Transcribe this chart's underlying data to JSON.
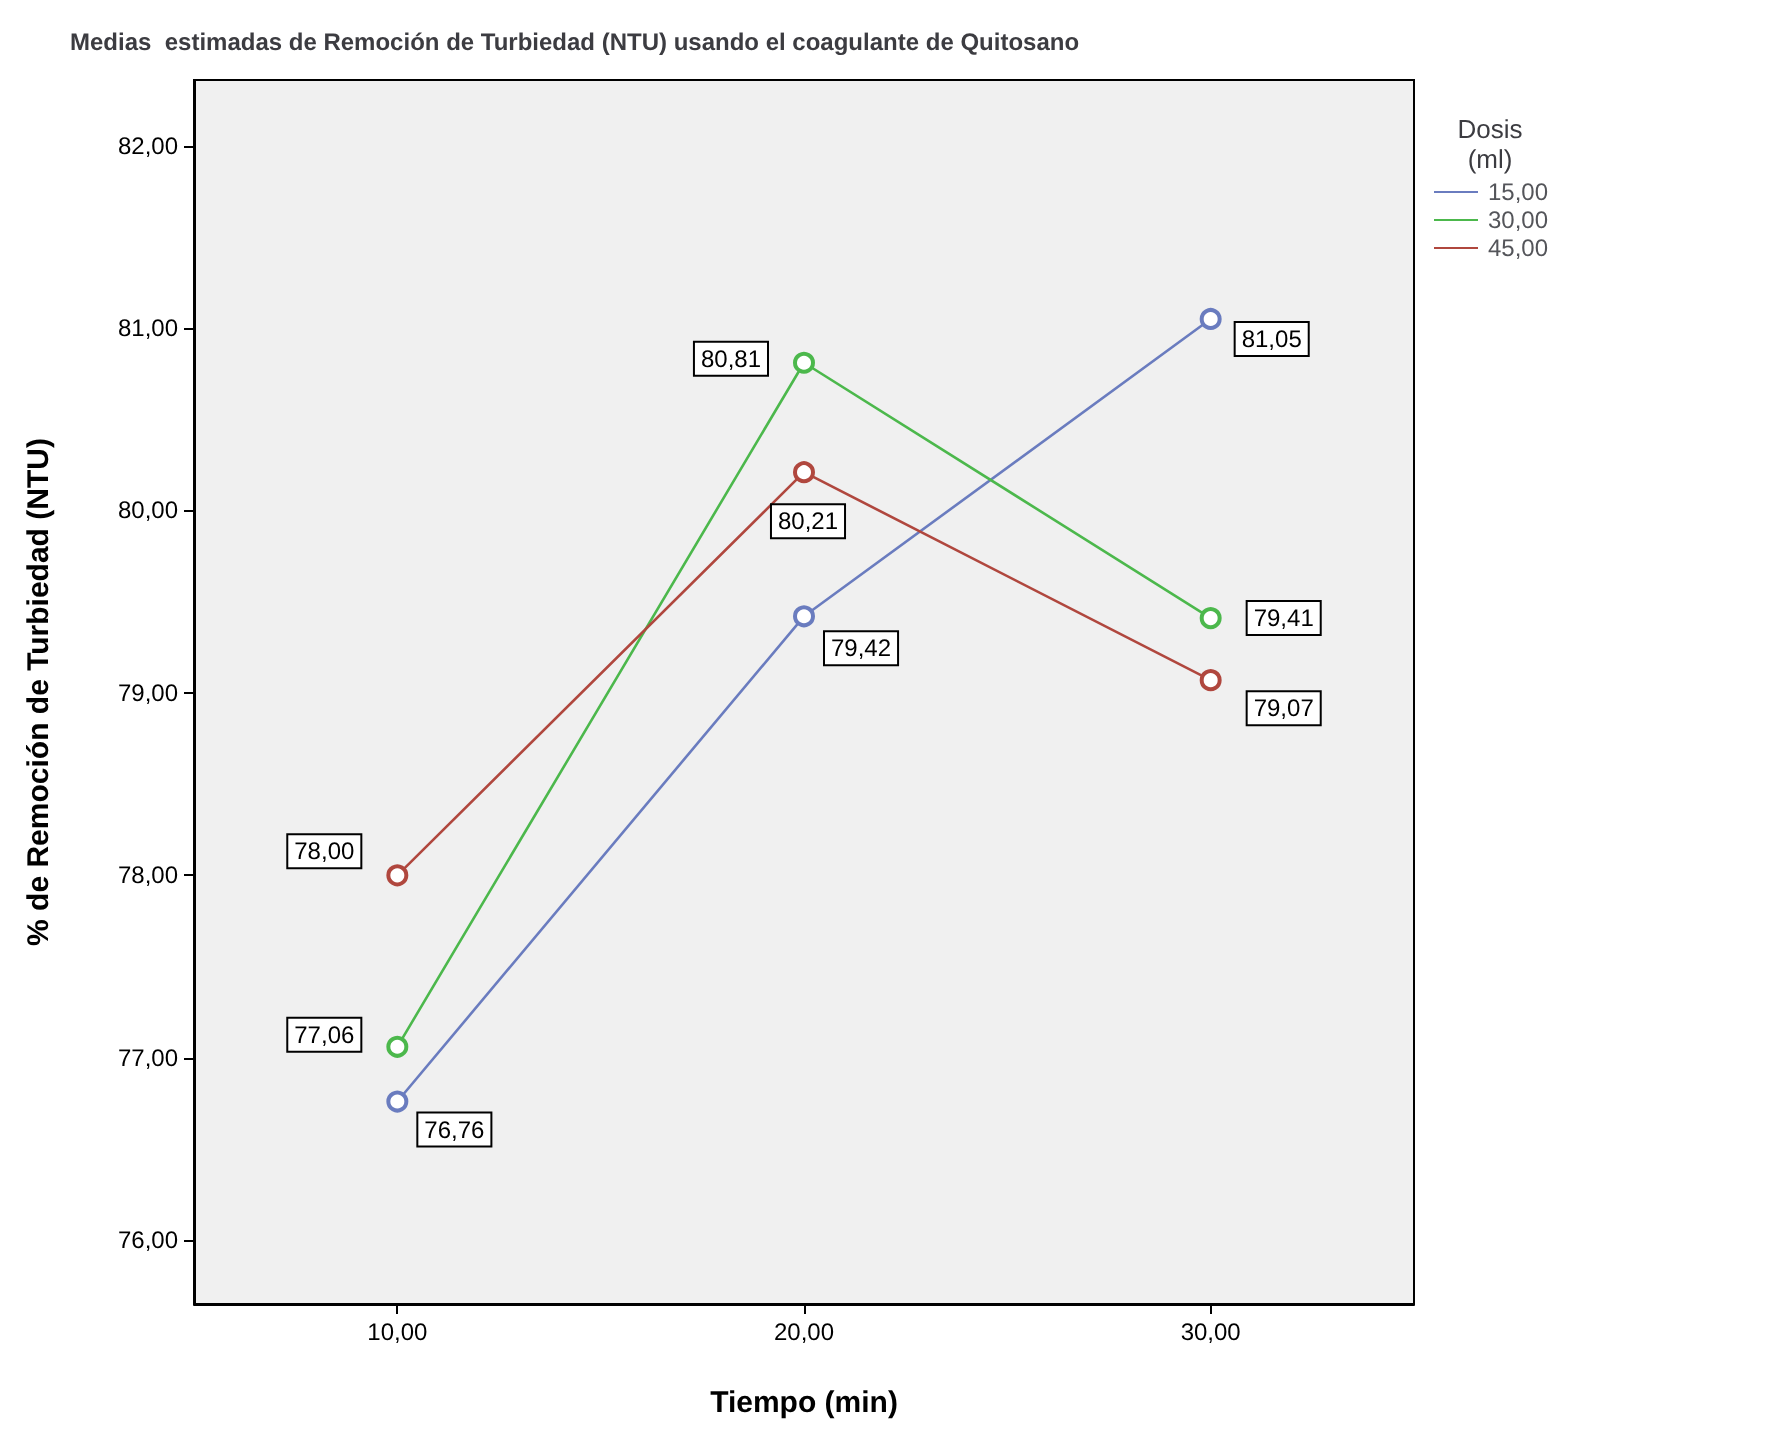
{
  "chart_data": {
    "type": "line",
    "title": "Medias  estimadas de Remoción de Turbiedad (NTU) usando el coagulante de Quitosano",
    "xlabel": "Tiempo (min)",
    "ylabel": "% de Remoción de Turbiedad (NTU)",
    "legend_title": "Dosis (ml)",
    "categories": [
      "10,00",
      "20,00",
      "30,00"
    ],
    "series": [
      {
        "name": "15,00",
        "color": "#6a7cbf",
        "values": [
          76.76,
          79.42,
          81.05
        ],
        "value_labels": [
          "76,76",
          "79,42",
          "81,05"
        ]
      },
      {
        "name": "30,00",
        "color": "#4cb84c",
        "values": [
          77.06,
          80.81,
          79.41
        ],
        "value_labels": [
          "77,06",
          "80,81",
          "79,41"
        ]
      },
      {
        "name": "45,00",
        "color": "#b0473e",
        "values": [
          78.0,
          80.21,
          79.07
        ],
        "value_labels": [
          "78,00",
          "80,21",
          "79,07"
        ]
      }
    ],
    "ylim": [
      75.65,
      82.36
    ],
    "yticks": [
      {
        "value": 76,
        "label": "76,00"
      },
      {
        "value": 77,
        "label": "77,00"
      },
      {
        "value": 78,
        "label": "78,00"
      },
      {
        "value": 79,
        "label": "79,00"
      },
      {
        "value": 80,
        "label": "80,00"
      },
      {
        "value": 81,
        "label": "81,00"
      },
      {
        "value": 82,
        "label": "82,00"
      }
    ],
    "grid": false,
    "legend": "top right",
    "marker": "circle",
    "line_style": "solid"
  }
}
